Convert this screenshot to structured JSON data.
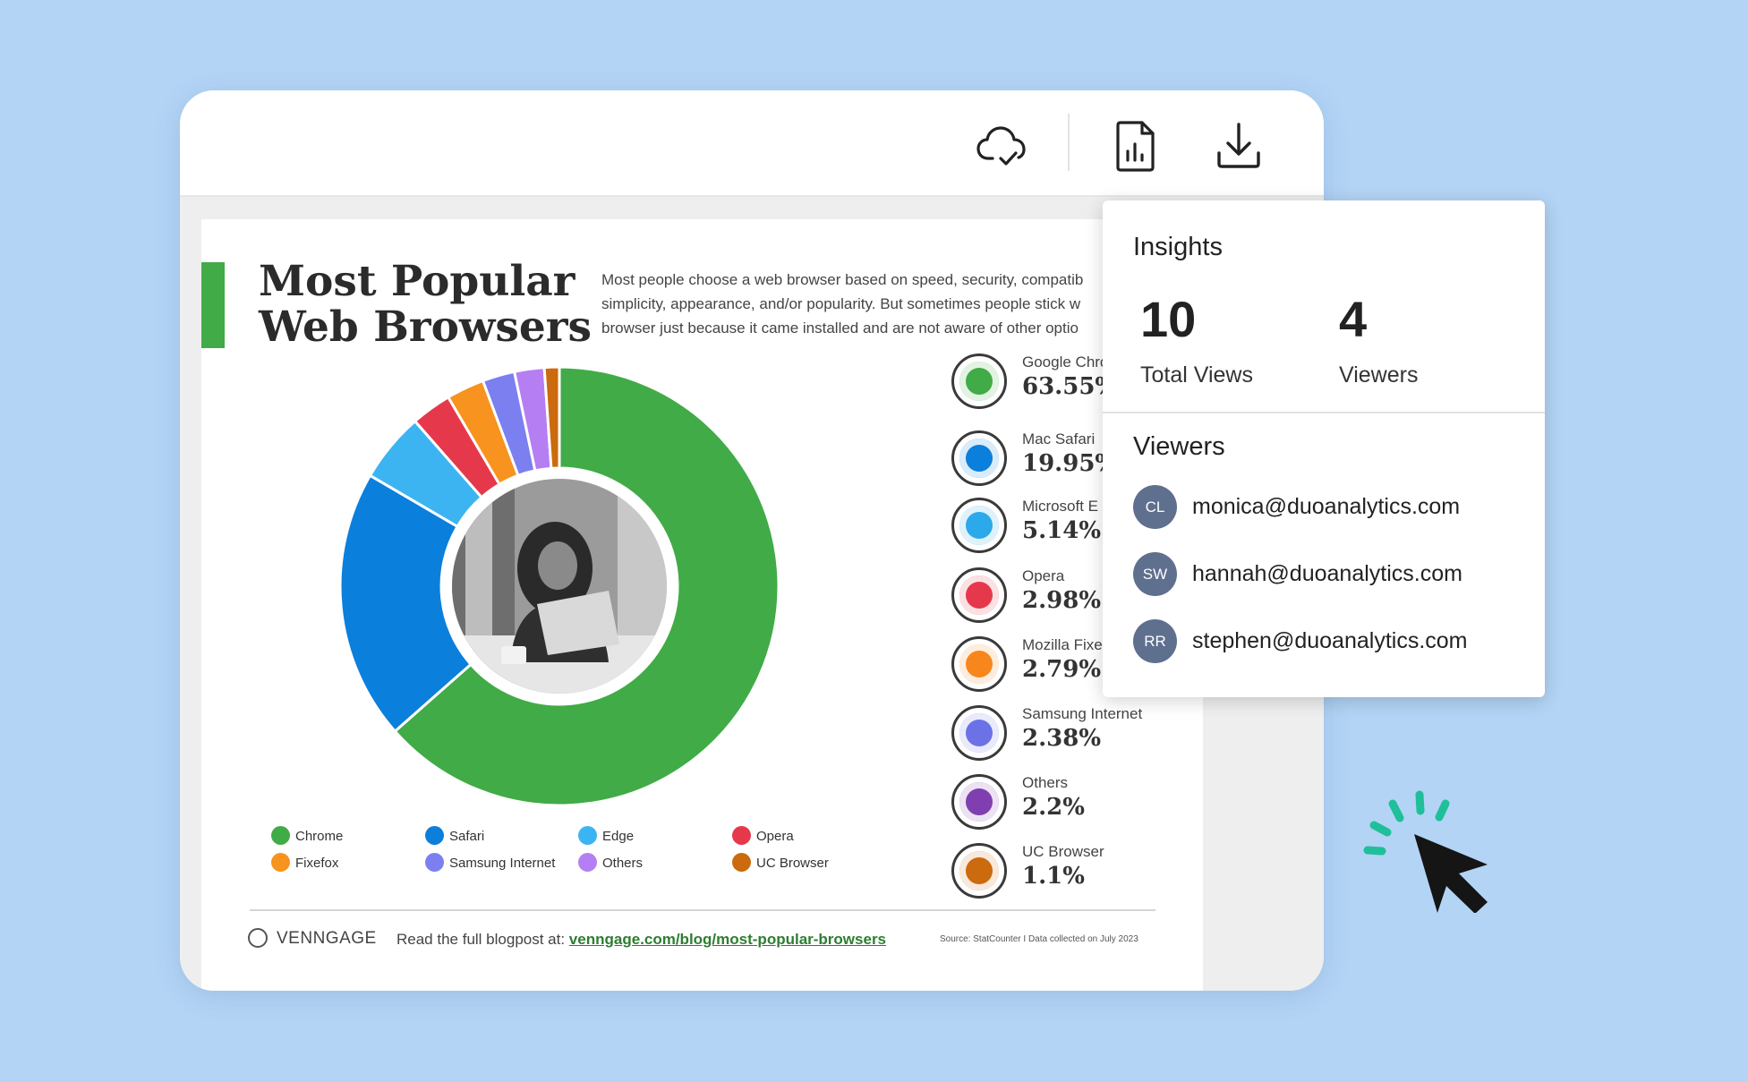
{
  "toolbar": {
    "icons": [
      "cloud-check-icon",
      "report-file-icon",
      "download-icon"
    ]
  },
  "infographic": {
    "title_line1": "Most Popular",
    "title_line2": "Web Browsers",
    "intro_line1": "Most people choose a web browser based on speed, security, compatib",
    "intro_line2": "simplicity, appearance, and/or popularity. But sometimes people stick w",
    "intro_line3": "browser just because it came installed and are not aware of other optio",
    "stats": [
      {
        "name": "Google Chro",
        "value": "63.55%",
        "color": "#41ab47",
        "icon": "chrome-icon"
      },
      {
        "name": "Mac Safari",
        "value": "19.95%",
        "color": "#0b7fdc",
        "icon": "safari-icon"
      },
      {
        "name": "Microsoft E",
        "value": "5.14%",
        "color": "#2ba9ea",
        "icon": "edge-icon"
      },
      {
        "name": "Opera",
        "value": "2.98%",
        "color": "#e5394b",
        "icon": "opera-icon"
      },
      {
        "name": "Mozilla Fixe",
        "value": "2.79%",
        "color": "#f7871c",
        "icon": "firefox-icon"
      },
      {
        "name": "Samsung Internet",
        "value": "2.38%",
        "color": "#6b72e6",
        "icon": "samsung-internet-icon"
      },
      {
        "name": "Others",
        "value": "2.2%",
        "color": "#7f3fb0",
        "icon": "globe-icon"
      },
      {
        "name": "UC Browser",
        "value": "1.1%",
        "color": "#cc6a0e",
        "icon": "uc-browser-icon"
      }
    ],
    "legend": [
      {
        "label": "Chrome",
        "color": "#41ab47"
      },
      {
        "label": "Safari",
        "color": "#0b7fdc"
      },
      {
        "label": "Edge",
        "color": "#3db4f2"
      },
      {
        "label": "Opera",
        "color": "#e5394b"
      },
      {
        "label": "Fixefox",
        "color": "#f7931e"
      },
      {
        "label": "Samsung Internet",
        "color": "#7b7ff0"
      },
      {
        "label": "Others",
        "color": "#b57ef3"
      },
      {
        "label": "UC Browser",
        "color": "#cc6a0e"
      }
    ],
    "brand": "VENNGAGE",
    "readmore_prefix": "Read the full blogpost at: ",
    "readmore_link": "venngage.com/blog/most-popular-browsers",
    "source": "Source: StatCounter I Data collected on July 2023"
  },
  "chart_data": {
    "type": "pie",
    "categories": [
      "Chrome",
      "Safari",
      "Edge",
      "Opera",
      "Fixefox",
      "Samsung Internet",
      "Others",
      "UC Browser"
    ],
    "values": [
      63.55,
      19.95,
      5.14,
      2.98,
      2.79,
      2.38,
      2.2,
      1.1
    ],
    "colors": [
      "#41ab47",
      "#0b7fdc",
      "#3db4f2",
      "#e5394b",
      "#f7931e",
      "#7b7ff0",
      "#b57ef3",
      "#cc6a0e"
    ],
    "donut": true,
    "legend": "bottom"
  },
  "insights": {
    "title": "Insights",
    "total_views_value": "10",
    "total_views_label": "Total Views",
    "viewers_value": "4",
    "viewers_label": "Viewers",
    "viewers_section_title": "Viewers",
    "viewers": [
      {
        "initials": "CL",
        "email": "monica@duoanalytics.com"
      },
      {
        "initials": "SW",
        "email": "hannah@duoanalytics.com"
      },
      {
        "initials": "RR",
        "email": "stephen@duoanalytics.com"
      }
    ]
  }
}
